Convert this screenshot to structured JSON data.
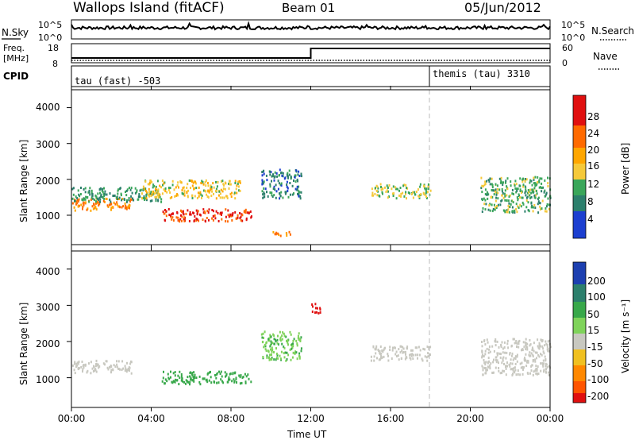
{
  "header": {
    "station": "Wallops Island (fitACF)",
    "beam": "Beam 01",
    "date": "05/Jun/2012"
  },
  "noise_panel": {
    "left_label": "N.Sky",
    "right_label": "N.Search",
    "left_ticks": [
      "10^5",
      "10^0"
    ],
    "right_ticks": [
      "10^5",
      "10^0"
    ]
  },
  "freq_panel": {
    "left_label_1": "Freq.",
    "left_label_2": "[MHz]",
    "right_label": "Nave",
    "left_ticks": [
      "18",
      "8"
    ],
    "right_ticks": [
      "60",
      "0"
    ]
  },
  "cpid_panel": {
    "label": "CPID",
    "programs": [
      "tau (fast) -503",
      "themis (tau) 3310"
    ]
  },
  "x_axis": {
    "label": "Time UT",
    "ticks": [
      "00:00",
      "04:00",
      "08:00",
      "12:00",
      "16:00",
      "20:00",
      "00:00"
    ]
  },
  "power_panel": {
    "ylabel": "Slant Range [km]",
    "yticks": [
      "4000",
      "3000",
      "2000",
      "1000"
    ],
    "colorbar_label": "Power [dB]",
    "colorbar_ticks": [
      "28",
      "24",
      "20",
      "16",
      "12",
      "8",
      "4"
    ]
  },
  "velocity_panel": {
    "ylabel": "Slant Range [km]",
    "yticks": [
      "4000",
      "3000",
      "2000",
      "1000"
    ],
    "colorbar_label": "Velocity [m s⁻¹]",
    "colorbar_ticks": [
      "200",
      "100",
      "50",
      "15",
      "-15",
      "-50",
      "-100",
      "-200"
    ]
  },
  "chart_data": {
    "type": "heatmap",
    "title": "Wallops Island (fitACF)",
    "xlabel": "Time UT",
    "ylabel": "Slant Range [km]",
    "xlim_hours": [
      0,
      24
    ],
    "ylim_km": [
      180,
      4500
    ],
    "noise_sky_log10_range": [
      0,
      5
    ],
    "frequency_mhz_range": [
      8,
      18
    ],
    "frequency_steps": [
      {
        "from_hour": 0,
        "to_hour": 12,
        "mhz": 10.5
      },
      {
        "from_hour": 12,
        "to_hour": 24,
        "mhz": 15.5
      }
    ],
    "cpid_changes": [
      {
        "hour": 0,
        "program": "tau (fast) -503"
      },
      {
        "hour": 18,
        "program": "themis (tau) 3310"
      }
    ],
    "power_scale_db": [
      0,
      30
    ],
    "velocity_scale_ms": [
      -250,
      250
    ],
    "power_bands": [
      {
        "t_start": 0.0,
        "t_end": 3.0,
        "range_start": 1150,
        "range_end": 1500,
        "power_db": 22
      },
      {
        "t_start": 0.0,
        "t_end": 4.5,
        "range_start": 1400,
        "range_end": 1800,
        "power_db": 10
      },
      {
        "t_start": 4.5,
        "t_end": 9.0,
        "range_start": 850,
        "range_end": 1200,
        "power_db": 27
      },
      {
        "t_start": 3.5,
        "t_end": 8.5,
        "range_start": 1500,
        "range_end": 2000,
        "power_db": 16
      },
      {
        "t_start": 9.5,
        "t_end": 11.5,
        "range_start": 1500,
        "range_end": 2300,
        "power_db": 8
      },
      {
        "t_start": 10.0,
        "t_end": 11.0,
        "range_start": 450,
        "range_end": 600,
        "power_db": 22
      },
      {
        "t_start": 15.0,
        "t_end": 18.0,
        "range_start": 1500,
        "range_end": 1900,
        "power_db": 14
      },
      {
        "t_start": 20.5,
        "t_end": 24.0,
        "range_start": 1100,
        "range_end": 2100,
        "power_db": 12
      }
    ],
    "velocity_bands": [
      {
        "t_start": 0.0,
        "t_end": 3.0,
        "range_start": 1150,
        "range_end": 1500,
        "velocity_ms": 0
      },
      {
        "t_start": 4.5,
        "t_end": 9.0,
        "range_start": 850,
        "range_end": 1200,
        "velocity_ms": 40
      },
      {
        "t_start": 9.5,
        "t_end": 11.5,
        "range_start": 1500,
        "range_end": 2300,
        "velocity_ms": 30
      },
      {
        "t_start": 12.0,
        "t_end": 12.5,
        "range_start": 2800,
        "range_end": 3100,
        "velocity_ms": -220
      },
      {
        "t_start": 15.0,
        "t_end": 18.0,
        "range_start": 1500,
        "range_end": 1900,
        "velocity_ms": 0
      },
      {
        "t_start": 20.5,
        "t_end": 24.0,
        "range_start": 1100,
        "range_end": 2100,
        "velocity_ms": 0
      }
    ],
    "grid": false
  }
}
